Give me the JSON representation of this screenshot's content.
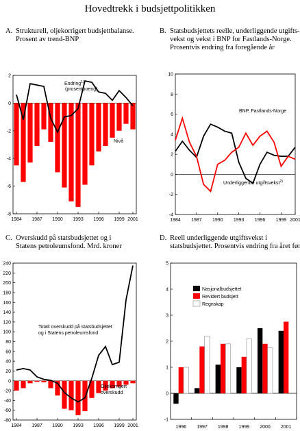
{
  "title": "Hovedtrekk i budsjettpolitikken",
  "panels": {
    "A": {
      "label": "A.",
      "title_lines": [
        "Strukturell, oljekorrigert budsjettbalanse.",
        "Prosent av trend-BNP"
      ]
    },
    "B": {
      "label": "B.",
      "title_lines": [
        "Statsbudsjettets reelle, underliggende utgifts-",
        "vekst og vekst i BNP for Fastlands-Norge.",
        "Prosentvis endring fra foregående år"
      ]
    },
    "C": {
      "label": "C.",
      "title_lines": [
        "Overskudd på statsbudsjettet og i",
        "Statens petroleumsfond. Mrd. kroner"
      ]
    },
    "D": {
      "label": "D.",
      "title_lines": [
        "Reell underliggende utgiftsvekst i",
        "statsbudsjettet. Prosentvis endring fra året før"
      ]
    }
  },
  "colors": {
    "red": "#ff0000",
    "black": "#000000",
    "white": "#ffffff"
  },
  "chart_data": [
    {
      "id": "A",
      "type": "bar+line",
      "ylim": [
        -8,
        2
      ],
      "yticks": [
        -8,
        -6,
        -4,
        -2,
        0,
        2
      ],
      "x": [
        1984,
        1985,
        1986,
        1987,
        1988,
        1989,
        1990,
        1991,
        1992,
        1993,
        1994,
        1995,
        1996,
        1997,
        1998,
        1999,
        2000,
        2001
      ],
      "xtick_labels": [
        "1984",
        "1987",
        "1990",
        "1993",
        "1996",
        "1999",
        "2001"
      ],
      "xtick_years": [
        1984,
        1987,
        1990,
        1993,
        1996,
        1999,
        2001
      ],
      "series": [
        {
          "name": "Nivå",
          "type": "bar",
          "color": "#ff0000",
          "values": [
            -4.5,
            -5.7,
            -4.3,
            -3.1,
            -1.9,
            -2.8,
            -5.0,
            -6.1,
            -7.1,
            -7.5,
            -5.9,
            -4.5,
            -3.5,
            -3.1,
            -2.5,
            -2.0,
            -1.5,
            -1.9
          ]
        },
        {
          "name": "Endring",
          "name_sup": "1)",
          "name_line2": "(prosentpoeng)",
          "type": "line",
          "color": "#000000",
          "values": [
            0.6,
            -1.2,
            1.4,
            1.3,
            1.2,
            -1.1,
            -2.1,
            -1.0,
            -0.9,
            -0.4,
            1.6,
            1.5,
            0.8,
            0.7,
            0.2,
            0.9,
            0.4,
            -0.2
          ]
        }
      ]
    },
    {
      "id": "B",
      "type": "line",
      "ylim": [
        -4,
        10
      ],
      "yticks": [
        -4,
        -2,
        0,
        2,
        4,
        6,
        8,
        10
      ],
      "x": [
        1984,
        1985,
        1986,
        1987,
        1988,
        1989,
        1990,
        1991,
        1992,
        1993,
        1994,
        1995,
        1996,
        1997,
        1998,
        1999,
        2000,
        2001
      ],
      "xtick_labels": [
        "1984",
        "1987",
        "1990",
        "1993",
        "1996",
        "1999",
        "2001"
      ],
      "xtick_years": [
        1984,
        1987,
        1990,
        1993,
        1996,
        1999,
        2001
      ],
      "series": [
        {
          "name": "BNP, Fastlands-Norge",
          "color": "#000000",
          "values": [
            2.3,
            3.3,
            2.4,
            1.7,
            3.8,
            5.0,
            4.7,
            4.3,
            4.1,
            1.2,
            -0.4,
            -0.9,
            1.0,
            2.2,
            1.9,
            1.8,
            1.8,
            2.7
          ]
        },
        {
          "name": "Underliggende utgiftsvekst",
          "name_sup": "2)",
          "color": "#ff0000",
          "values": [
            3.4,
            5.6,
            3.2,
            1.8,
            -1.0,
            -1.7,
            1.0,
            1.4,
            2.2,
            2.7,
            4.1,
            2.9,
            3.8,
            4.3,
            3.2,
            0.8,
            1.8,
            1.5
          ]
        }
      ]
    },
    {
      "id": "C",
      "type": "bar+line",
      "ylim": [
        -80,
        240
      ],
      "yticks": [
        -80,
        -60,
        -40,
        -20,
        0,
        20,
        40,
        60,
        80,
        100,
        120,
        140,
        160,
        180,
        200,
        220,
        240
      ],
      "x": [
        1984,
        1985,
        1986,
        1987,
        1988,
        1989,
        1990,
        1991,
        1992,
        1993,
        1994,
        1995,
        1996,
        1997,
        1998,
        1999,
        2000,
        2001
      ],
      "xtick_labels": [
        "1984",
        "1987",
        "1990",
        "1993",
        "1996",
        "1999",
        "2001"
      ],
      "xtick_years": [
        1984,
        1987,
        1990,
        1993,
        1996,
        1999,
        2001
      ],
      "series": [
        {
          "name": "Oljekorrigert overskudd",
          "type": "bar",
          "color": "#ff0000",
          "values": [
            -20,
            -15,
            -5,
            -2,
            -3,
            -15,
            -30,
            -57,
            -60,
            -70,
            -62,
            -35,
            -25,
            -20,
            -15,
            -12,
            -8,
            -5
          ]
        },
        {
          "name": "Totalt overskudd på statsbudsjettet og i Statens petroleumsfond",
          "type": "line",
          "color": "#000000",
          "values": [
            22,
            25,
            22,
            8,
            3,
            1,
            -5,
            -24,
            -35,
            -43,
            -35,
            5,
            52,
            70,
            33,
            38,
            165,
            235
          ]
        }
      ]
    },
    {
      "id": "D",
      "type": "bar",
      "ylim": [
        -1,
        5
      ],
      "yticks": [
        -1,
        0,
        1,
        2,
        3,
        4,
        5
      ],
      "categories": [
        "1996",
        "1997",
        "1998",
        "1999",
        "2000",
        "2001"
      ],
      "series": [
        {
          "name": "Nasjonalbudsjettet",
          "color": "#000000",
          "values": [
            -0.4,
            0.2,
            1.1,
            1.0,
            2.5,
            2.4
          ]
        },
        {
          "name": "Revidert budsjett",
          "color": "#ff0000",
          "values": [
            1.0,
            1.8,
            1.9,
            1.4,
            1.9,
            2.75
          ]
        },
        {
          "name": "Regnskap",
          "color": "#ffffff",
          "values": [
            1.0,
            2.2,
            1.9,
            2.1,
            1.75,
            null
          ]
        }
      ]
    }
  ]
}
